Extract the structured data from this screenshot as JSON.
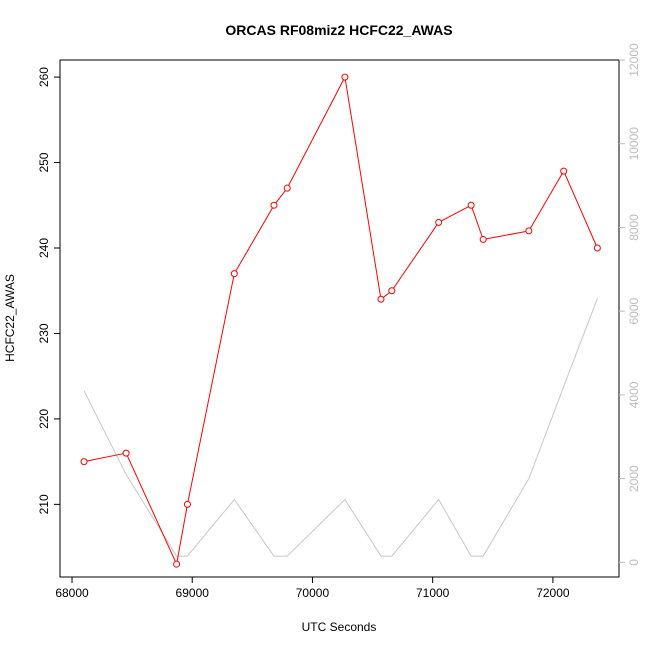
{
  "chart_data": {
    "type": "line",
    "title": "ORCAS RF08miz2 HCFC22_AWAS",
    "xlabel": "UTC Seconds",
    "ylabel": "HCFC22_AWAS",
    "xlim": [
      67900,
      72550
    ],
    "ylim": [
      201.5,
      262
    ],
    "y2lim": [
      -350,
      12000
    ],
    "x_ticks": [
      68000,
      69000,
      70000,
      71000,
      72000
    ],
    "y_ticks": [
      210,
      220,
      230,
      240,
      250,
      260
    ],
    "y2_ticks": [
      0,
      2000,
      4000,
      6000,
      8000,
      10000,
      12000
    ],
    "grid": false,
    "series": [
      {
        "axis": "left",
        "color": "#ff0000",
        "markers": true,
        "x": [
          68100,
          68450,
          68870,
          68960,
          69350,
          69680,
          69790,
          70270,
          70570,
          70660,
          71050,
          71320,
          71420,
          71800,
          72090,
          72370
        ],
        "y": [
          215,
          216,
          203,
          210,
          237,
          245,
          247,
          260,
          234,
          235,
          243,
          245,
          241,
          242,
          249,
          240
        ]
      },
      {
        "axis": "right",
        "color": "#c8c8c8",
        "markers": false,
        "x": [
          68100,
          68450,
          68870,
          68960,
          69350,
          69680,
          69790,
          70270,
          70570,
          70660,
          71050,
          71320,
          71420,
          71800,
          72090,
          72370
        ],
        "y": [
          4100,
          2100,
          150,
          150,
          1500,
          150,
          150,
          1500,
          150,
          150,
          1500,
          150,
          150,
          2000,
          4200,
          6300
        ]
      }
    ]
  }
}
